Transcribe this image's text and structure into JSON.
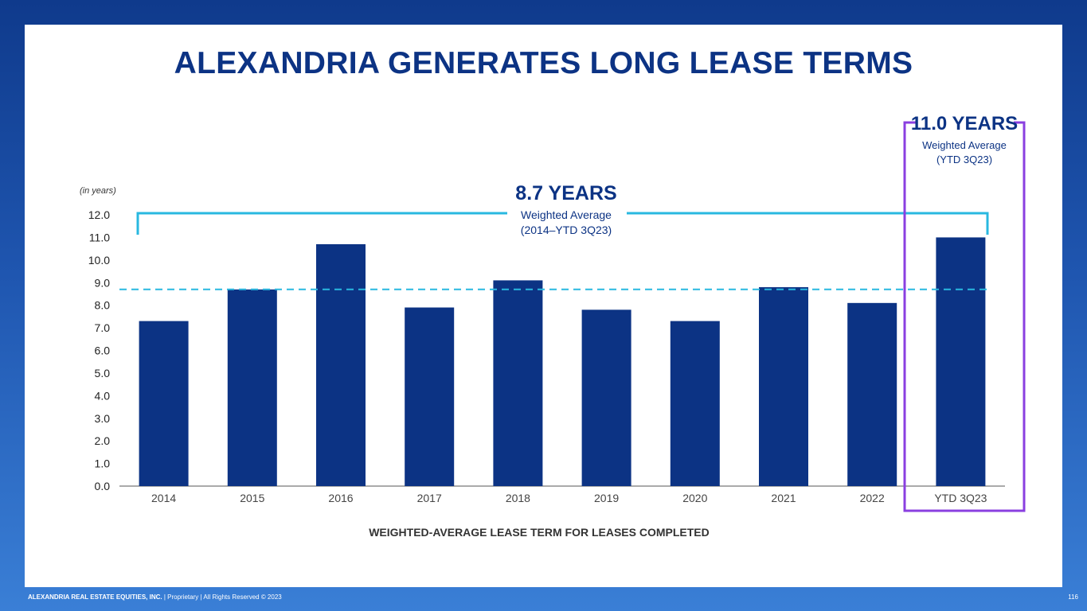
{
  "title": "ALEXANDRIA GENERATES LONG LEASE TERMS",
  "chart_data": {
    "type": "bar",
    "title": "WEIGHTED-AVERAGE LEASE TERM FOR LEASES COMPLETED",
    "unit_note": "(in years)",
    "categories": [
      "2014",
      "2015",
      "2016",
      "2017",
      "2018",
      "2019",
      "2020",
      "2021",
      "2022",
      "YTD 3Q23"
    ],
    "values": [
      7.3,
      8.7,
      10.7,
      7.9,
      9.1,
      7.8,
      7.3,
      8.8,
      8.1,
      11.0
    ],
    "ylim": [
      0,
      12
    ],
    "yticks": [
      "0.0",
      "1.0",
      "2.0",
      "3.0",
      "4.0",
      "5.0",
      "6.0",
      "7.0",
      "8.0",
      "9.0",
      "10.0",
      "11.0",
      "12.0"
    ],
    "average_line": 8.7,
    "average_annotation": {
      "headline": "8.7 YEARS",
      "line1": "Weighted Average",
      "line2": "(2014–YTD 3Q23)"
    },
    "highlight_annotation": {
      "headline": "11.0 YEARS",
      "line1": "Weighted Average",
      "line2": "(YTD 3Q23)"
    }
  },
  "footer": {
    "company": "ALEXANDRIA REAL ESTATE EQUITIES, INC.",
    "rest": " | Proprietary | All Rights Reserved © 2023",
    "page": "116"
  },
  "colors": {
    "bar": "#0c3384",
    "average": "#29b8e0",
    "highlight": "#8a3fe0",
    "title": "#0c3384"
  }
}
